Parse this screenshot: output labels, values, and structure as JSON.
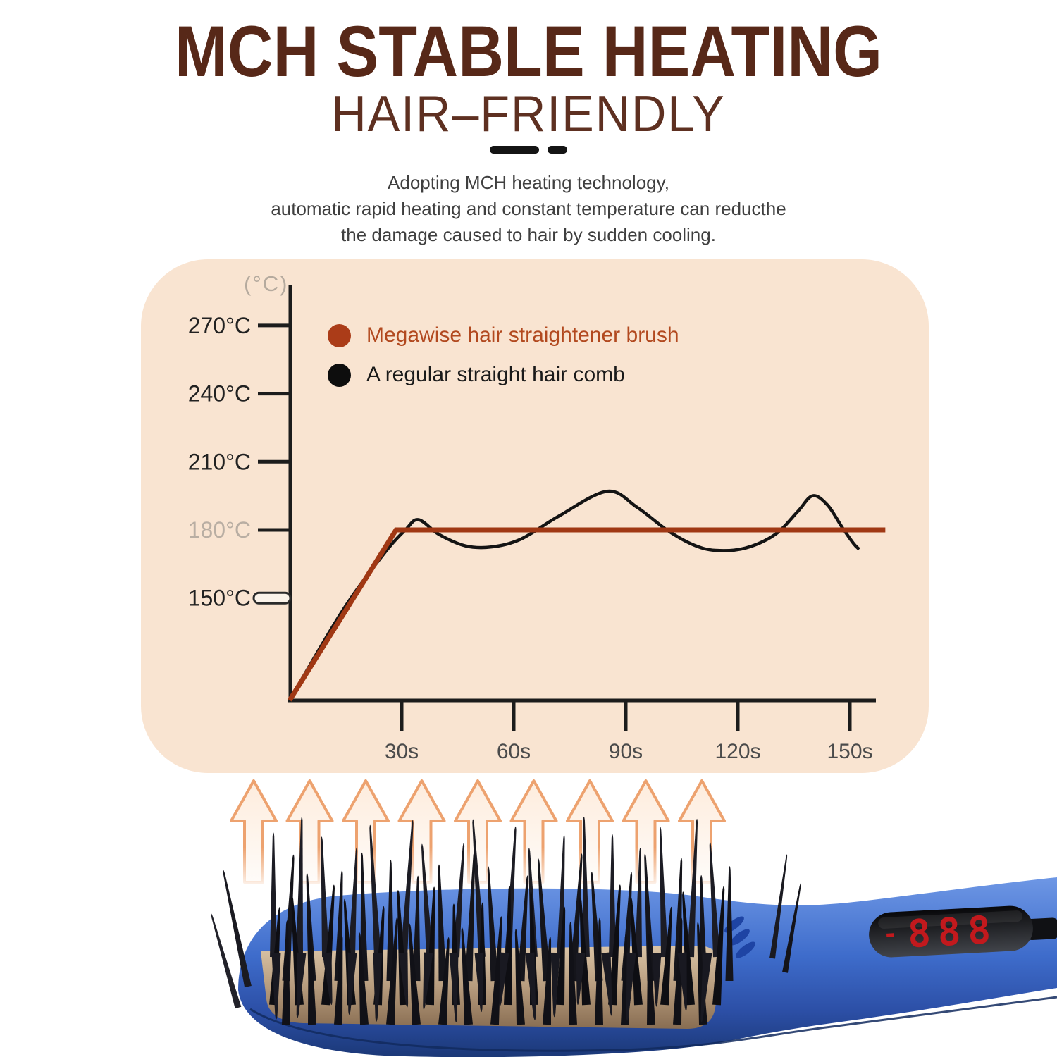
{
  "header": {
    "title": "MCH STABLE HEATING",
    "subtitle": "HAIR–FRIENDLY",
    "description_lines": [
      "Adopting MCH heating technology,",
      "automatic rapid heating and constant temperature can reducthe",
      "the damage caused to hair by sudden cooling."
    ]
  },
  "chart_data": {
    "type": "line",
    "unit_label": "(°C)",
    "y_axis_range_shown": [
      150,
      270
    ],
    "grid": false,
    "legend_position": "top-left inside plot",
    "y_ticks": [
      {
        "label": "270°C",
        "value": 270,
        "muted": false,
        "hollow": false
      },
      {
        "label": "240°C",
        "value": 240,
        "muted": false,
        "hollow": false
      },
      {
        "label": "210°C",
        "value": 210,
        "muted": false,
        "hollow": false
      },
      {
        "label": "180°C",
        "value": 180,
        "muted": true,
        "hollow": false
      },
      {
        "label": "150°C",
        "value": 150,
        "muted": false,
        "hollow": true
      }
    ],
    "x_ticks": [
      {
        "label": "30s",
        "value": 30
      },
      {
        "label": "60s",
        "value": 60
      },
      {
        "label": "90s",
        "value": 90
      },
      {
        "label": "120s",
        "value": 120
      },
      {
        "label": "150s",
        "value": 150
      }
    ],
    "series": [
      {
        "name": "A regular straight hair comb",
        "color": "#141414",
        "style": "smooth",
        "stroke_width": 4.5,
        "points": [
          [
            0,
            105
          ],
          [
            14,
            144
          ],
          [
            25,
            169
          ],
          [
            31,
            180
          ],
          [
            34.5,
            184.5
          ],
          [
            40,
            178
          ],
          [
            47,
            173
          ],
          [
            54,
            172.5
          ],
          [
            62,
            176
          ],
          [
            72,
            186
          ],
          [
            85,
            197
          ],
          [
            93,
            190
          ],
          [
            101,
            180
          ],
          [
            108,
            173.5
          ],
          [
            114,
            171
          ],
          [
            122,
            172
          ],
          [
            130,
            178
          ],
          [
            136,
            188
          ],
          [
            140,
            195
          ],
          [
            144,
            191
          ],
          [
            148,
            181
          ],
          [
            151,
            174
          ],
          [
            152.5,
            171.5
          ]
        ]
      },
      {
        "name": "Megawise hair straightener brush",
        "color": "#a03814",
        "style": "straight",
        "stroke_width": 7,
        "points": [
          [
            0,
            105
          ],
          [
            28.5,
            180
          ],
          [
            159.5,
            180
          ]
        ]
      }
    ],
    "legend": [
      {
        "label": "Megawise hair straightener brush",
        "color": "#ab3c18",
        "text_color": "#b2491f"
      },
      {
        "label": "A regular straight hair comb",
        "color": "#0d0d0d",
        "text_color": "#1a1a1a"
      }
    ]
  },
  "product": {
    "led_display": "888"
  },
  "colors": {
    "page_bg": "#ffffff",
    "panel_bg": "#f9e4d1",
    "title_brown": "#572818",
    "axis_black": "#1c1c1c",
    "muted_label": "#b9aea3",
    "x_label_gray": "#4b4b4b",
    "brand_red": "#a03814",
    "led_red": "#c2191d",
    "body_blue": "#3e6ccb",
    "arrow_orange": "#eda26f"
  }
}
